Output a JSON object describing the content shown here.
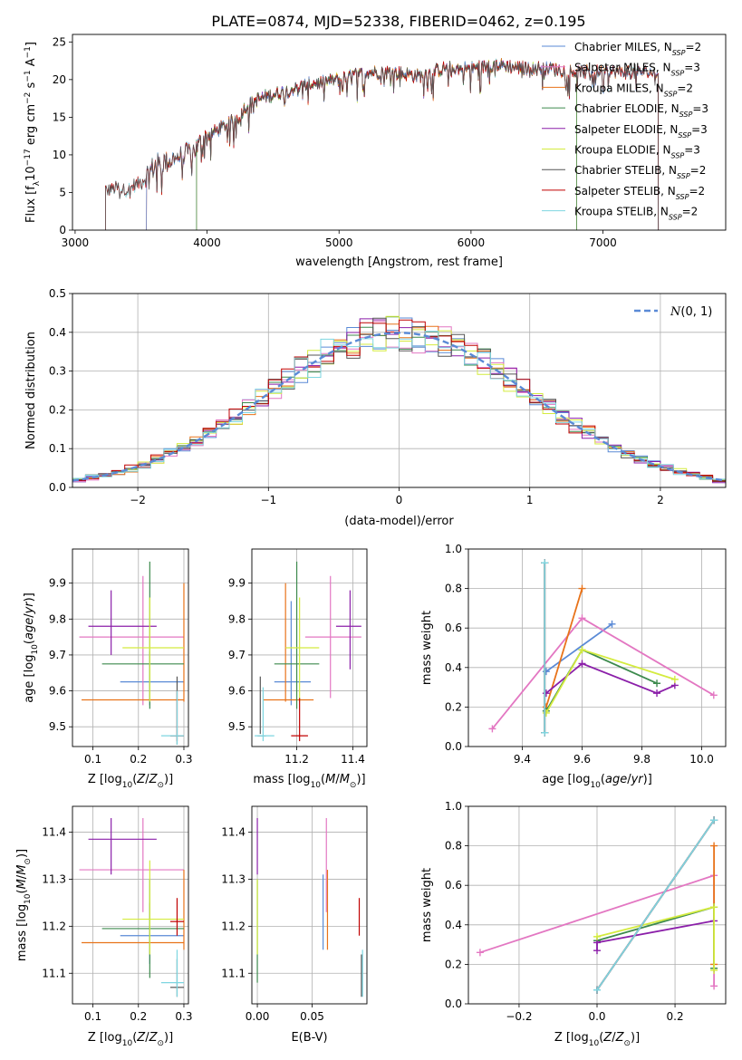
{
  "figure": {
    "title": "PLATE=0874, MJD=52338, FIBERID=0462, z=0.195"
  },
  "chart_data": [
    {
      "id": "spectrum",
      "type": "line",
      "xlabel": "wavelength [Angstrom, rest frame]",
      "ylabel": "Flux [f_λ 10^-17 erg cm^-2 s^-1 A^-1]",
      "xlim": [
        2980,
        7930
      ],
      "ylim": [
        0,
        26
      ],
      "xticks": [
        3000,
        4000,
        5000,
        6000,
        7000
      ],
      "yticks": [
        0,
        5,
        10,
        15,
        20,
        25
      ],
      "grid": false,
      "legend_position": "right",
      "series_anchor": {
        "x": [
          3230,
          3300,
          3400,
          3500,
          3600,
          3700,
          3800,
          3900,
          4000,
          4100,
          4200,
          4300,
          4400,
          4600,
          4800,
          5000,
          5200,
          5400,
          5600,
          5800,
          6000,
          6200,
          6400,
          6600,
          6800,
          7000,
          7200,
          7400
        ],
        "y": [
          5.3,
          5.6,
          5.4,
          6.5,
          8.5,
          9.2,
          9.8,
          10.5,
          12.5,
          13.5,
          14.5,
          16.5,
          17.5,
          18.5,
          19.5,
          20,
          21,
          21,
          20.5,
          21.5,
          21.5,
          22,
          21.5,
          21.5,
          21,
          21,
          21,
          21
        ]
      },
      "series": [
        {
          "name": "Chabrier MILES",
          "nssp": "2",
          "color": "#5a8ad6",
          "xmin": 3540,
          "xmax": 7420
        },
        {
          "name": "Salpeter MILES",
          "nssp": "3",
          "color": "#e377c2",
          "xmin": 3540,
          "xmax": 7420
        },
        {
          "name": "Kroupa MILES",
          "nssp": "2",
          "color": "#e8731a",
          "xmin": 3540,
          "xmax": 7420
        },
        {
          "name": "Chabrier ELODIE",
          "nssp": "3",
          "color": "#3d8a4d",
          "xmin": 3920,
          "xmax": 6800
        },
        {
          "name": "Salpeter ELODIE",
          "nssp": "3",
          "color": "#8b1fa9",
          "xmin": 3920,
          "xmax": 6800
        },
        {
          "name": "Kroupa ELODIE",
          "nssp": "3",
          "color": "#d4eb3f",
          "xmin": 3920,
          "xmax": 6800
        },
        {
          "name": "Chabrier STELIB",
          "nssp": "2",
          "color": "#555555",
          "xmin": 3230,
          "xmax": 7420
        },
        {
          "name": "Salpeter STELIB",
          "nssp": "2",
          "color": "#c00000",
          "xmin": 3230,
          "xmax": 7420
        },
        {
          "name": "Kroupa STELIB",
          "nssp": "2",
          "color": "#7ed6e0",
          "xmin": 3230,
          "xmax": 7420
        }
      ]
    },
    {
      "id": "residuals",
      "type": "line",
      "xlabel": "(data-model)/error",
      "ylabel": "Normed distribution",
      "xlim": [
        -2.5,
        2.5
      ],
      "ylim": [
        0,
        0.5
      ],
      "xticks": [
        -2,
        -1,
        0,
        1,
        2
      ],
      "xtick_labels": [
        "−2",
        "−1",
        "0",
        "1",
        "2"
      ],
      "yticks": [
        0.0,
        0.1,
        0.2,
        0.3,
        0.4,
        0.5
      ],
      "grid": true,
      "legend_position": "top-right",
      "legend": "N(0,1)",
      "bin_width": 0.1,
      "curve_color": "#5a8ad6"
    },
    {
      "id": "age-vs-Z",
      "type": "scatter",
      "xlabel": "Z [log10(Z/Z⊙)]",
      "ylabel": "age [log10(age/yr)]",
      "xlim": [
        0.055,
        0.31
      ],
      "ylim": [
        9.445,
        9.995
      ],
      "xticks": [
        0.1,
        0.2,
        0.3
      ],
      "yticks": [
        9.5,
        9.6,
        9.7,
        9.8,
        9.9
      ],
      "grid": true,
      "points": [
        {
          "series": "Chabrier MILES",
          "x": 0.225,
          "y": 9.625,
          "xerr": [
            0.16,
            0.3
          ],
          "yerr": [
            9.56,
            9.71
          ]
        },
        {
          "series": "Salpeter MILES",
          "x": 0.21,
          "y": 9.75,
          "xerr": [
            0.07,
            0.3
          ],
          "yerr": [
            9.56,
            9.92
          ]
        },
        {
          "series": "Kroupa MILES",
          "x": 0.3,
          "y": 9.575,
          "xerr": [
            0.075,
            0.3
          ],
          "yerr": [
            9.57,
            9.9
          ]
        },
        {
          "series": "Chabrier ELODIE",
          "x": 0.225,
          "y": 9.675,
          "xerr": [
            0.12,
            0.3
          ],
          "yerr": [
            9.55,
            9.96
          ]
        },
        {
          "series": "Salpeter ELODIE",
          "x": 0.14,
          "y": 9.78,
          "xerr": [
            0.09,
            0.24
          ],
          "yerr": [
            9.7,
            9.88
          ]
        },
        {
          "series": "Kroupa ELODIE",
          "x": 0.225,
          "y": 9.72,
          "xerr": [
            0.165,
            0.3
          ],
          "yerr": [
            9.57,
            9.86
          ]
        },
        {
          "series": "Chabrier STELIB",
          "x": 0.285,
          "y": 9.475,
          "xerr": [
            0.27,
            0.3
          ],
          "yerr": [
            9.45,
            9.64
          ]
        },
        {
          "series": "Salpeter STELIB",
          "x": 0.285,
          "y": 9.475,
          "xerr": [
            0.27,
            0.3
          ],
          "yerr": [
            9.46,
            9.6
          ]
        },
        {
          "series": "Kroupa STELIB",
          "x": 0.285,
          "y": 9.475,
          "xerr": [
            0.25,
            0.3
          ],
          "yerr": [
            9.45,
            9.6
          ]
        }
      ]
    },
    {
      "id": "age-vs-mass",
      "type": "scatter",
      "xlabel": "mass [log10(M/M⊙)]",
      "ylabel": "",
      "xlim": [
        11.04,
        11.45
      ],
      "ylim": [
        9.445,
        9.995
      ],
      "xticks": [
        11.2,
        11.4
      ],
      "yticks": [
        9.5,
        9.6,
        9.7,
        9.8,
        9.9
      ],
      "grid": true,
      "points": [
        {
          "series": "Chabrier MILES",
          "x": 11.18,
          "y": 9.625,
          "xerr": [
            11.12,
            11.25
          ],
          "yerr": [
            9.56,
            9.85
          ]
        },
        {
          "series": "Salpeter MILES",
          "x": 11.32,
          "y": 9.75,
          "xerr": [
            11.23,
            11.43
          ],
          "yerr": [
            9.58,
            9.92
          ]
        },
        {
          "series": "Kroupa MILES",
          "x": 11.16,
          "y": 9.575,
          "xerr": [
            11.08,
            11.26
          ],
          "yerr": [
            9.57,
            9.9
          ]
        },
        {
          "series": "Chabrier ELODIE",
          "x": 11.2,
          "y": 9.675,
          "xerr": [
            11.12,
            11.28
          ],
          "yerr": [
            9.55,
            9.96
          ]
        },
        {
          "series": "Salpeter ELODIE",
          "x": 11.39,
          "y": 9.78,
          "xerr": [
            11.34,
            11.43
          ],
          "yerr": [
            9.66,
            9.88
          ]
        },
        {
          "series": "Kroupa ELODIE",
          "x": 11.21,
          "y": 9.72,
          "xerr": [
            11.16,
            11.28
          ],
          "yerr": [
            9.57,
            9.86
          ]
        },
        {
          "series": "Chabrier STELIB",
          "x": 11.07,
          "y": 9.475,
          "xerr": [
            11.06,
            11.09
          ],
          "yerr": [
            9.48,
            9.64
          ]
        },
        {
          "series": "Salpeter STELIB",
          "x": 11.21,
          "y": 9.475,
          "xerr": [
            11.18,
            11.24
          ],
          "yerr": [
            9.46,
            9.58
          ]
        },
        {
          "series": "Kroupa STELIB",
          "x": 11.08,
          "y": 9.475,
          "xerr": [
            11.05,
            11.12
          ],
          "yerr": [
            9.46,
            9.61
          ]
        }
      ]
    },
    {
      "id": "mass-weight-vs-age",
      "type": "line",
      "xlabel": "age [log10(age/yr)]",
      "ylabel": "mass weight",
      "xlim": [
        9.22,
        10.08
      ],
      "ylim": [
        0,
        1
      ],
      "xticks": [
        9.4,
        9.6,
        9.8,
        10.0
      ],
      "yticks": [
        0.0,
        0.2,
        0.4,
        0.6,
        0.8,
        1.0
      ],
      "grid": true,
      "series": [
        {
          "name": "Chabrier MILES",
          "x": [
            9.48,
            9.7
          ],
          "y": [
            0.38,
            0.62
          ]
        },
        {
          "name": "Salpeter MILES",
          "x": [
            9.3,
            9.6,
            10.04
          ],
          "y": [
            0.09,
            0.65,
            0.26
          ]
        },
        {
          "name": "Kroupa MILES",
          "x": [
            9.48,
            9.6
          ],
          "y": [
            0.2,
            0.8
          ]
        },
        {
          "name": "Chabrier ELODIE",
          "x": [
            9.48,
            9.6,
            9.85
          ],
          "y": [
            0.18,
            0.49,
            0.32
          ]
        },
        {
          "name": "Salpeter ELODIE",
          "x": [
            9.48,
            9.6,
            9.85,
            9.91
          ],
          "y": [
            0.27,
            0.42,
            0.27,
            0.31
          ]
        },
        {
          "name": "Kroupa ELODIE",
          "x": [
            9.48,
            9.6,
            9.91
          ],
          "y": [
            0.17,
            0.49,
            0.34
          ]
        },
        {
          "name": "Chabrier STELIB",
          "x": [
            9.475,
            9.475
          ],
          "y": [
            0.07,
            0.93
          ]
        },
        {
          "name": "Salpeter STELIB",
          "x": [
            9.475,
            9.475
          ],
          "y": [
            0.07,
            0.93
          ]
        },
        {
          "name": "Kroupa STELIB",
          "x": [
            9.475,
            9.475
          ],
          "y": [
            0.07,
            0.93
          ]
        }
      ]
    },
    {
      "id": "mass-vs-Z",
      "type": "scatter",
      "xlabel": "Z [log10(Z/Z⊙)]",
      "ylabel": "mass [log10(M/M⊙)]",
      "xlim": [
        0.055,
        0.31
      ],
      "ylim": [
        11.035,
        11.455
      ],
      "xticks": [
        0.1,
        0.2,
        0.3
      ],
      "yticks": [
        11.1,
        11.2,
        11.3,
        11.4
      ],
      "grid": true,
      "points": [
        {
          "series": "Chabrier MILES",
          "x": 0.225,
          "y": 11.18,
          "xerr": [
            0.16,
            0.3
          ],
          "yerr": [
            11.12,
            11.25
          ]
        },
        {
          "series": "Salpeter MILES",
          "x": 0.21,
          "y": 11.32,
          "xerr": [
            0.07,
            0.3
          ],
          "yerr": [
            11.23,
            11.43
          ]
        },
        {
          "series": "Kroupa MILES",
          "x": 0.3,
          "y": 11.165,
          "xerr": [
            0.075,
            0.3
          ],
          "yerr": [
            11.15,
            11.32
          ]
        },
        {
          "series": "Chabrier ELODIE",
          "x": 0.225,
          "y": 11.195,
          "xerr": [
            0.12,
            0.3
          ],
          "yerr": [
            11.09,
            11.3
          ]
        },
        {
          "series": "Salpeter ELODIE",
          "x": 0.14,
          "y": 11.385,
          "xerr": [
            0.09,
            0.24
          ],
          "yerr": [
            11.31,
            11.43
          ]
        },
        {
          "series": "Kroupa ELODIE",
          "x": 0.225,
          "y": 11.215,
          "xerr": [
            0.165,
            0.3
          ],
          "yerr": [
            11.14,
            11.34
          ]
        },
        {
          "series": "Chabrier STELIB",
          "x": 0.285,
          "y": 11.07,
          "xerr": [
            0.27,
            0.3
          ],
          "yerr": [
            11.05,
            11.13
          ]
        },
        {
          "series": "Salpeter STELIB",
          "x": 0.285,
          "y": 11.21,
          "xerr": [
            0.27,
            0.3
          ],
          "yerr": [
            11.18,
            11.26
          ]
        },
        {
          "series": "Kroupa STELIB",
          "x": 0.285,
          "y": 11.08,
          "xerr": [
            0.25,
            0.3
          ],
          "yerr": [
            11.05,
            11.15
          ]
        }
      ]
    },
    {
      "id": "mass-vs-ebv",
      "type": "scatter",
      "xlabel": "E(B-V)",
      "ylabel": "",
      "xlim": [
        -0.005,
        0.1
      ],
      "ylim": [
        11.035,
        11.455
      ],
      "xticks": [
        0.0,
        0.05
      ],
      "xtick_labels": [
        "0.00",
        "0.05"
      ],
      "yticks": [
        11.1,
        11.2,
        11.3,
        11.4
      ],
      "grid": true,
      "points": [
        {
          "series": "Chabrier MILES",
          "x": 0.06,
          "y": 11.18,
          "yerr": [
            11.15,
            11.31
          ]
        },
        {
          "series": "Salpeter MILES",
          "x": 0.063,
          "y": 11.32,
          "yerr": [
            11.23,
            11.43
          ]
        },
        {
          "series": "Kroupa MILES",
          "x": 0.064,
          "y": 11.165,
          "yerr": [
            11.15,
            11.32
          ]
        },
        {
          "series": "Chabrier ELODIE",
          "x": 0.0,
          "y": 11.195,
          "yerr": [
            11.08,
            11.3
          ]
        },
        {
          "series": "Salpeter ELODIE",
          "x": 0.0,
          "y": 11.385,
          "yerr": [
            11.31,
            11.43
          ]
        },
        {
          "series": "Kroupa ELODIE",
          "x": 0.0,
          "y": 11.215,
          "yerr": [
            11.14,
            11.3
          ]
        },
        {
          "series": "Chabrier STELIB",
          "x": 0.095,
          "y": 11.07,
          "yerr": [
            11.05,
            11.14
          ]
        },
        {
          "series": "Salpeter STELIB",
          "x": 0.093,
          "y": 11.21,
          "yerr": [
            11.18,
            11.26
          ]
        },
        {
          "series": "Kroupa STELIB",
          "x": 0.096,
          "y": 11.08,
          "yerr": [
            11.05,
            11.15
          ]
        }
      ]
    },
    {
      "id": "mass-weight-vs-Z",
      "type": "line",
      "xlabel": "Z [log10(Z/Z⊙)]",
      "ylabel": "mass weight",
      "xlim": [
        -0.33,
        0.33
      ],
      "ylim": [
        0,
        1
      ],
      "xticks": [
        -0.2,
        0.0,
        0.2
      ],
      "xtick_labels": [
        "−0.2",
        "0.0",
        "0.2"
      ],
      "yticks": [
        0.0,
        0.2,
        0.4,
        0.6,
        0.8,
        1.0
      ],
      "grid": true,
      "series": [
        {
          "name": "Chabrier MILES",
          "x": [
            0.0,
            0.3
          ],
          "y": [
            0.07,
            0.93
          ]
        },
        {
          "name": "Salpeter MILES",
          "x": [
            -0.3,
            0.3,
            0.3
          ],
          "y": [
            0.26,
            0.65,
            0.09
          ]
        },
        {
          "name": "Kroupa MILES",
          "x": [
            0.3,
            0.3
          ],
          "y": [
            0.2,
            0.8
          ]
        },
        {
          "name": "Chabrier ELODIE",
          "x": [
            0.0,
            0.3,
            0.3
          ],
          "y": [
            0.32,
            0.49,
            0.18
          ]
        },
        {
          "name": "Salpeter ELODIE",
          "x": [
            0.0,
            0.0,
            0.3
          ],
          "y": [
            0.27,
            0.31,
            0.42
          ]
        },
        {
          "name": "Kroupa ELODIE",
          "x": [
            0.0,
            0.3,
            0.3
          ],
          "y": [
            0.34,
            0.49,
            0.17
          ]
        },
        {
          "name": "Chabrier STELIB",
          "x": [
            0.0,
            0.3
          ],
          "y": [
            0.07,
            0.93
          ]
        },
        {
          "name": "Salpeter STELIB",
          "x": [
            0.0,
            0.3
          ],
          "y": [
            0.07,
            0.93
          ]
        },
        {
          "name": "Kroupa STELIB",
          "x": [
            0.0,
            0.3
          ],
          "y": [
            0.07,
            0.93
          ]
        }
      ]
    }
  ]
}
